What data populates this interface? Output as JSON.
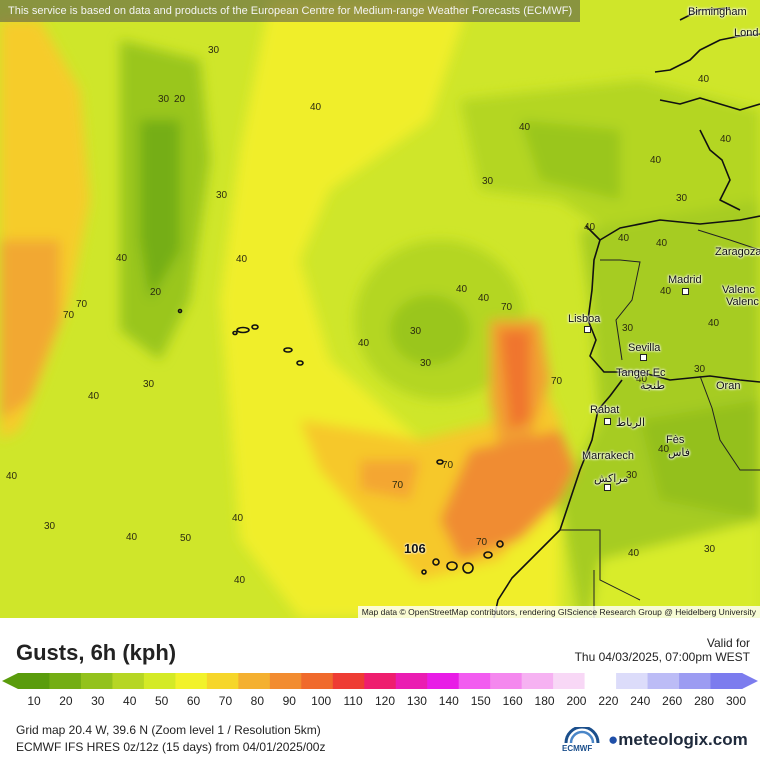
{
  "notice": "This service is based on data and products of the European Centre for Medium-range Weather Forecasts (ECMWF)",
  "attribution": "Map data © OpenStreetMap contributors, rendering GIScience Research Group @ Heidelberg University",
  "title": "Gusts, 6h (kph)",
  "valid_label": "Valid for",
  "valid_time": "Thu 04/03/2025, 07:00pm WEST",
  "legend": {
    "ticks": [
      "10",
      "20",
      "30",
      "40",
      "50",
      "60",
      "70",
      "80",
      "90",
      "100",
      "110",
      "120",
      "130",
      "140",
      "150",
      "160",
      "180",
      "200",
      "220",
      "240",
      "260",
      "280",
      "300"
    ],
    "colors": [
      "#5a9c0c",
      "#74ae14",
      "#93c21c",
      "#b6d624",
      "#d4ea26",
      "#f2f22a",
      "#f6d62a",
      "#f4b030",
      "#f28c30",
      "#f06a2c",
      "#ee3c34",
      "#ee1e6e",
      "#ea1cb2",
      "#e81ce6",
      "#f25cf0",
      "#f488ee",
      "#f6b2f2",
      "#f8d8f6",
      "#ffffff",
      "#dcdcfa",
      "#bcbcf6",
      "#9c9cf2",
      "#7c7cee"
    ]
  },
  "footer": {
    "line1": "Grid map 20.4 W, 39.6 N (Zoom level 1 / Resolution 5km)",
    "line2": "ECMWF IFS HRES 0z/12z (15 days)  from  04/01/2025/00z",
    "ecmwf": "ECMWF",
    "brand": "meteologix.com"
  },
  "cities": [
    "Birmingham",
    "Lond",
    "Zaragoza",
    "Madrid",
    "Valenc",
    "Valenc",
    "Lisboa",
    "Sevilla",
    "Tanger Ec",
    "طنجة",
    "Oran",
    "Rabat",
    "الرباط",
    "Fès",
    "فاس",
    "Marrakech",
    "مراكش"
  ],
  "max_value": "106",
  "contour_labels": [
    "30",
    "20",
    "30",
    "40",
    "40",
    "30",
    "30",
    "20",
    "40",
    "30",
    "70",
    "70",
    "40",
    "40",
    "30",
    "40",
    "40",
    "40",
    "40",
    "40",
    "40",
    "40",
    "40",
    "40",
    "40",
    "70",
    "30",
    "30",
    "70",
    "70",
    "70",
    "40",
    "30",
    "40",
    "30",
    "40",
    "30",
    "70",
    "30",
    "40",
    "50",
    "40",
    "40",
    "40",
    "30",
    "40"
  ]
}
